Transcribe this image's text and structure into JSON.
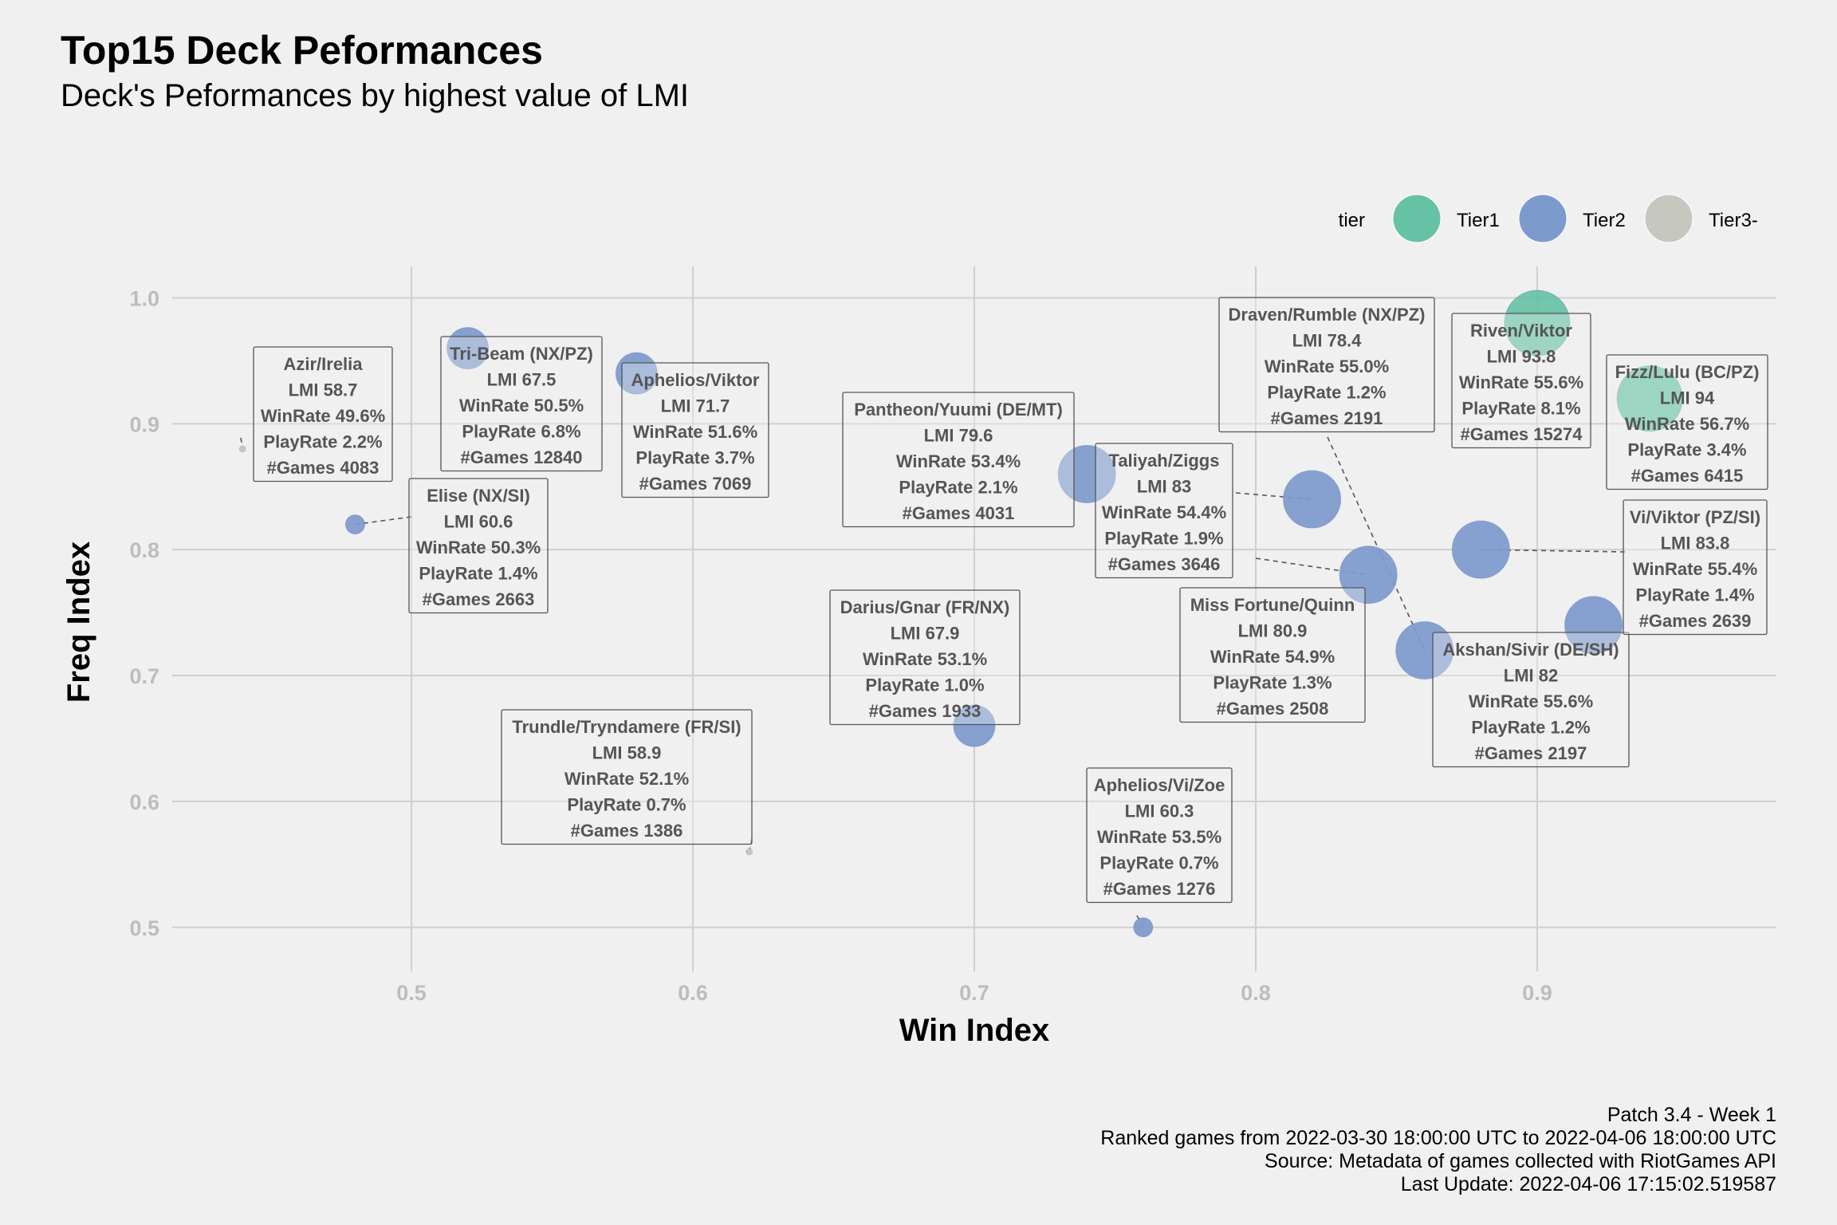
{
  "header": {
    "title": "Top15 Deck Peformances",
    "subtitle": "Deck's Peformances by highest value of LMI"
  },
  "caption": [
    "Patch 3.4 - Week 1",
    "Ranked games from 2022-03-30 18:00:00 UTC to 2022-04-06 18:00:00 UTC",
    "Source: Metadata of games collected with RiotGames API",
    "Last Update: 2022-04-06 17:15:02.519587"
  ],
  "colors": {
    "Tier1": "#66c2a5",
    "Tier2": "#7d9acd",
    "Tier3-": "#c6c8c0",
    "background": "#f0f0f0",
    "grid": "#cfcfcf"
  },
  "chart_data": {
    "type": "scatter",
    "xlabel": "Win Index",
    "ylabel": "Freq Index",
    "xlim": [
      0.415,
      0.985
    ],
    "ylim": [
      0.465,
      1.025
    ],
    "xticks": [
      0.5,
      0.6,
      0.7,
      0.8,
      0.9
    ],
    "xtick_labels": [
      "0.5",
      "0.6",
      "0.7",
      "0.8",
      "0.9"
    ],
    "yticks": [
      0.5,
      0.6,
      0.7,
      0.8,
      0.9,
      1.0
    ],
    "ytick_labels": [
      "0.5",
      "0.6",
      "0.7",
      "0.8",
      "0.9",
      "1.0"
    ],
    "grid": true,
    "legend": {
      "title": "tier",
      "position": "top-right",
      "entries": [
        "Tier1",
        "Tier2",
        "Tier3-"
      ]
    },
    "points": [
      {
        "deck": "Azir/Irelia",
        "x": 0.44,
        "y": 0.88,
        "tier": "Tier3-",
        "lmi": "58.7",
        "winrate": "49.6%",
        "playrate": "2.2%",
        "games": "4083"
      },
      {
        "deck": "Tri-Beam (NX/PZ)",
        "x": 0.52,
        "y": 0.96,
        "tier": "Tier2",
        "lmi": "67.5",
        "winrate": "50.5%",
        "playrate": "6.8%",
        "games": "12840"
      },
      {
        "deck": "Elise (NX/SI)",
        "x": 0.48,
        "y": 0.82,
        "tier": "Tier2",
        "lmi": "60.6",
        "winrate": "50.3%",
        "playrate": "1.4%",
        "games": "2663"
      },
      {
        "deck": "Aphelios/Viktor",
        "x": 0.58,
        "y": 0.94,
        "tier": "Tier2",
        "lmi": "71.7",
        "winrate": "51.6%",
        "playrate": "3.7%",
        "games": "7069"
      },
      {
        "deck": "Trundle/Tryndamere (FR/SI)",
        "x": 0.62,
        "y": 0.56,
        "tier": "Tier3-",
        "lmi": "58.9",
        "winrate": "52.1%",
        "playrate": "0.7%",
        "games": "1386"
      },
      {
        "deck": "Pantheon/Yuumi (DE/MT)",
        "x": 0.74,
        "y": 0.86,
        "tier": "Tier2",
        "lmi": "79.6",
        "winrate": "53.4%",
        "playrate": "2.1%",
        "games": "4031"
      },
      {
        "deck": "Darius/Gnar (FR/NX)",
        "x": 0.7,
        "y": 0.66,
        "tier": "Tier2",
        "lmi": "67.9",
        "winrate": "53.1%",
        "playrate": "1.0%",
        "games": "1933"
      },
      {
        "deck": "Aphelios/Vi/Zoe",
        "x": 0.76,
        "y": 0.5,
        "tier": "Tier2",
        "lmi": "60.3",
        "winrate": "53.5%",
        "playrate": "0.7%",
        "games": "1276"
      },
      {
        "deck": "Taliyah/Ziggs",
        "x": 0.82,
        "y": 0.84,
        "tier": "Tier2",
        "lmi": "83",
        "winrate": "54.4%",
        "playrate": "1.9%",
        "games": "3646"
      },
      {
        "deck": "Miss Fortune/Quinn",
        "x": 0.84,
        "y": 0.78,
        "tier": "Tier2",
        "lmi": "80.9",
        "winrate": "54.9%",
        "playrate": "1.3%",
        "games": "2508"
      },
      {
        "deck": "Draven/Rumble (NX/PZ)",
        "x": 0.86,
        "y": 0.72,
        "tier": "Tier2",
        "lmi": "78.4",
        "winrate": "55.0%",
        "playrate": "1.2%",
        "games": "2191"
      },
      {
        "deck": "Riven/Viktor",
        "x": 0.9,
        "y": 0.98,
        "tier": "Tier1",
        "lmi": "93.8",
        "winrate": "55.6%",
        "playrate": "8.1%",
        "games": "15274"
      },
      {
        "deck": "Akshan/Sivir (DE/SH)",
        "x": 0.92,
        "y": 0.74,
        "tier": "Tier2",
        "lmi": "82",
        "winrate": "55.6%",
        "playrate": "1.2%",
        "games": "2197"
      },
      {
        "deck": "Vi/Viktor (PZ/SI)",
        "x": 0.88,
        "y": 0.8,
        "tier": "Tier2",
        "lmi": "83.8",
        "winrate": "55.4%",
        "playrate": "1.4%",
        "games": "2639"
      },
      {
        "deck": "Fizz/Lulu (BC/PZ)",
        "x": 0.94,
        "y": 0.92,
        "tier": "Tier1",
        "lmi": "94",
        "winrate": "56.7%",
        "playrate": "3.4%",
        "games": "6415"
      }
    ]
  }
}
